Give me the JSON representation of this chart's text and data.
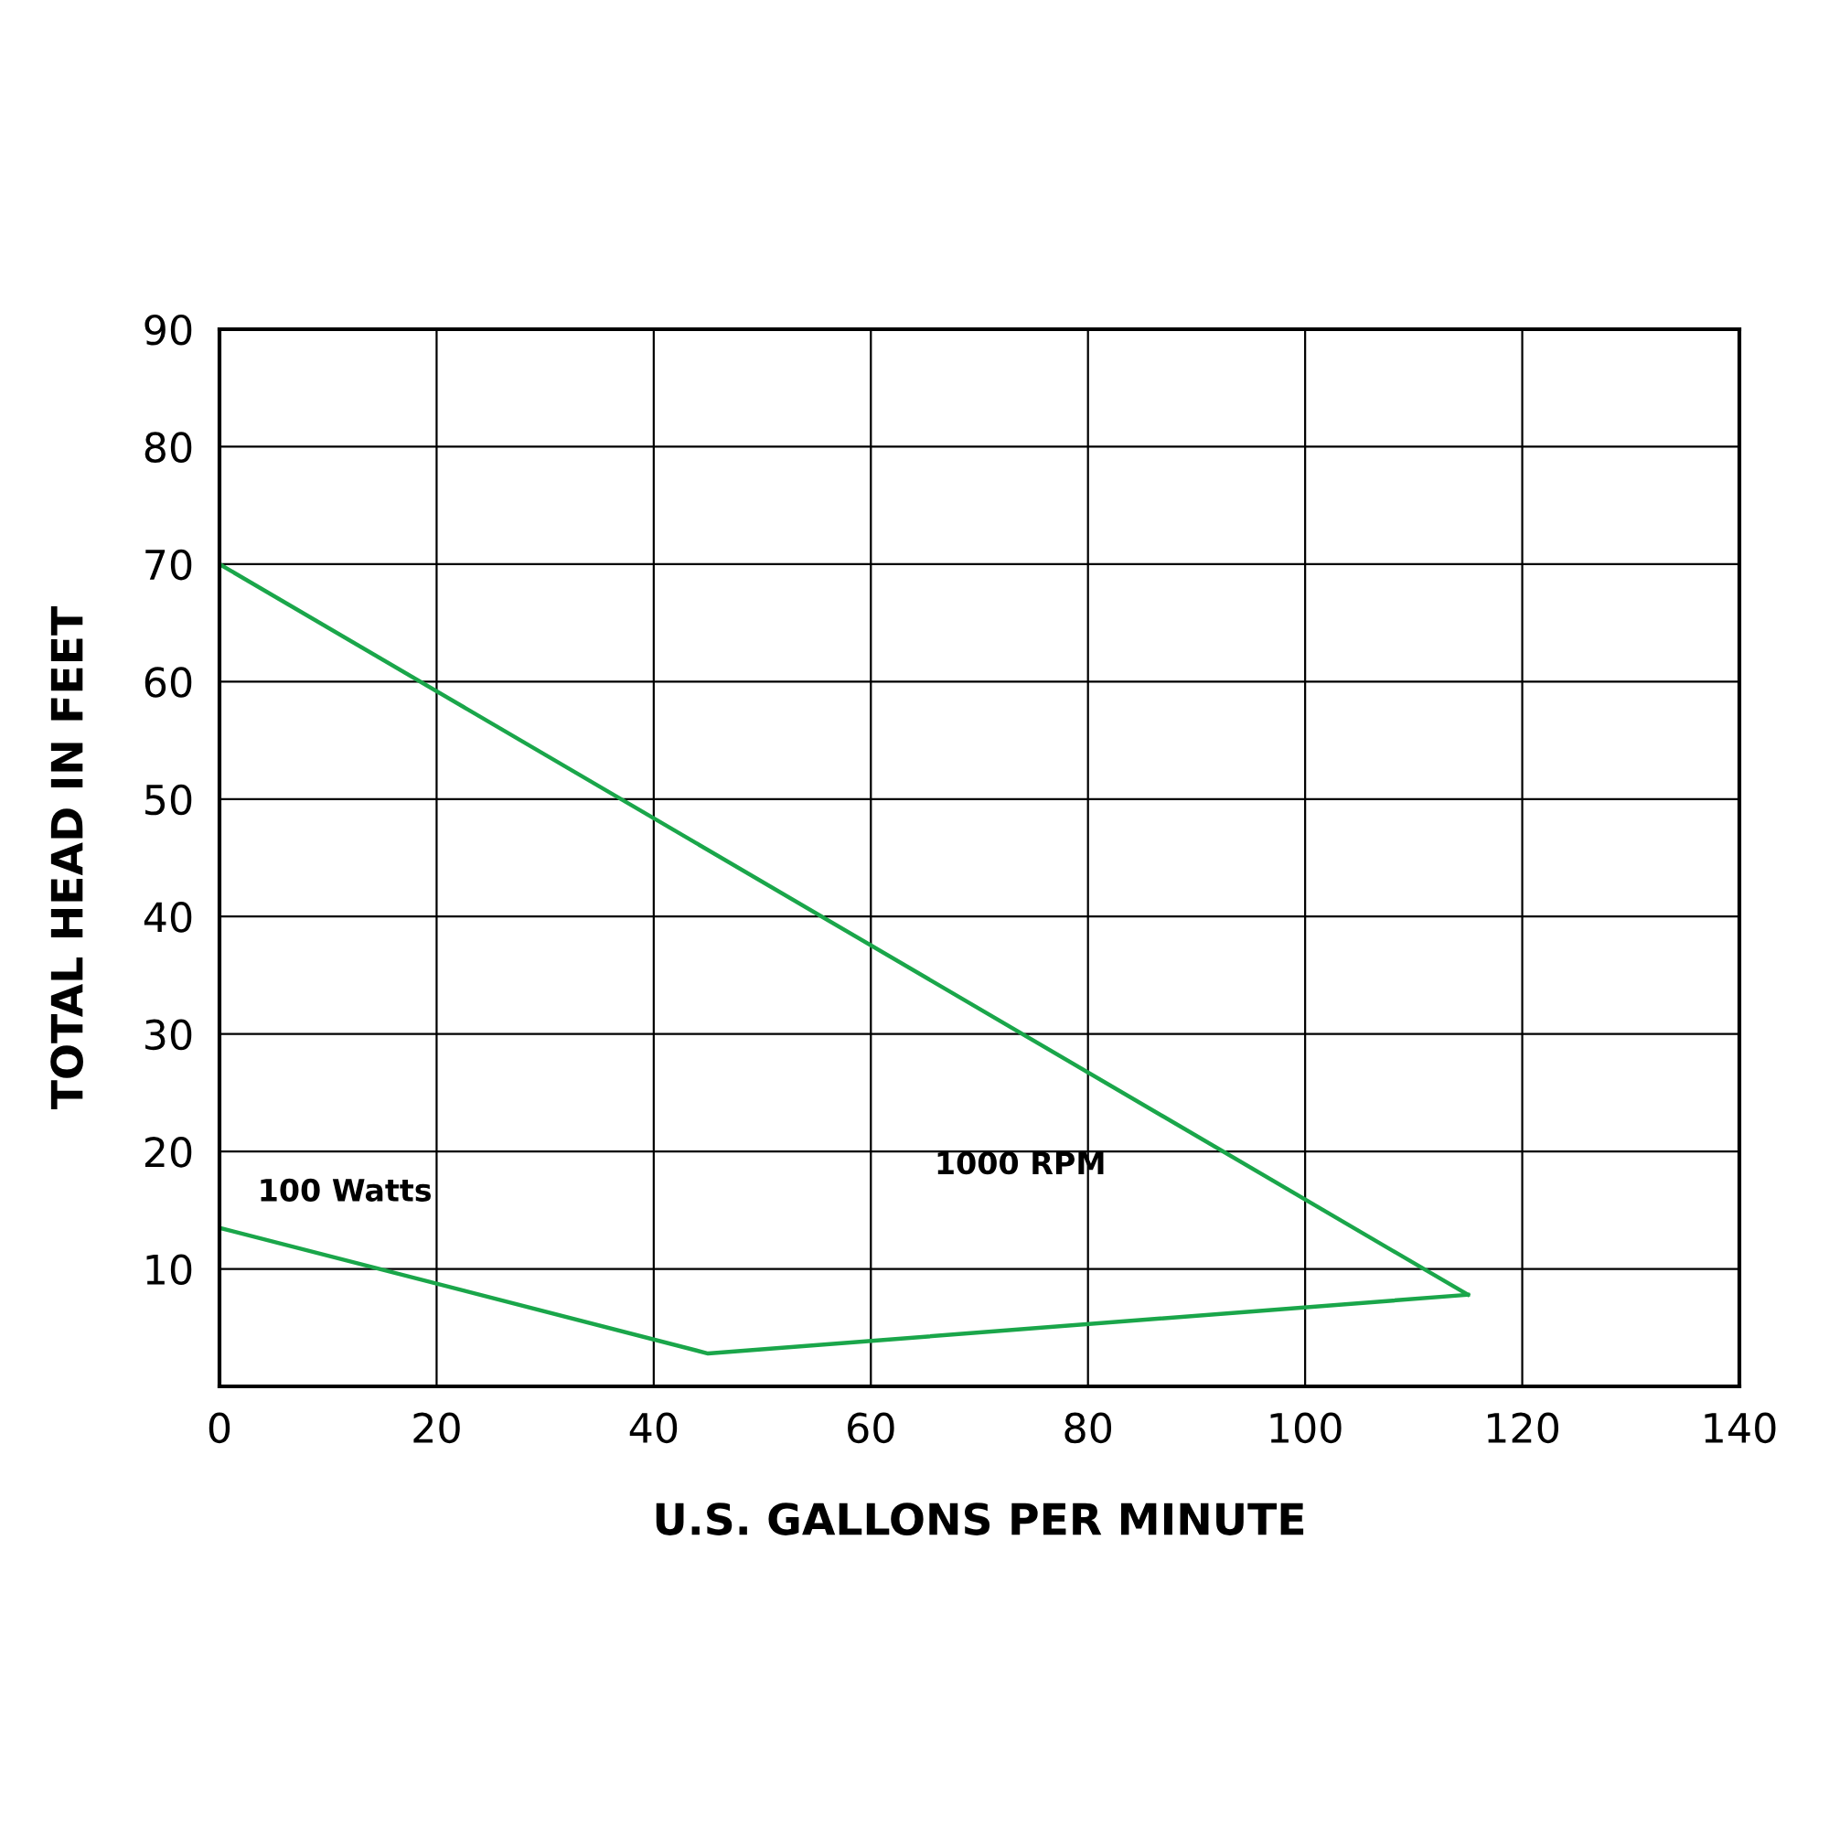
{
  "chart_data": {
    "type": "line",
    "xlabel": "U.S. GALLONS PER MINUTE",
    "ylabel": "TOTAL HEAD IN FEET",
    "series": [
      {
        "name": "1000 RPM",
        "color": "#1aa64a",
        "x": [
          0,
          115
        ],
        "values": [
          70,
          7.8
        ]
      },
      {
        "name": "100 Watts",
        "color": "#1aa64a",
        "x": [
          0,
          45,
          115
        ],
        "values": [
          13.5,
          2.8,
          7.8
        ]
      }
    ],
    "xlim": [
      0,
      140
    ],
    "ylim": [
      0,
      90
    ],
    "xticks": [
      0,
      20,
      40,
      60,
      80,
      100,
      120,
      140
    ],
    "yticks": [
      {
        "value": 0,
        "label": null
      },
      10,
      20,
      30,
      40,
      50,
      60,
      70,
      80,
      90
    ],
    "grid": true,
    "legend": false,
    "marker": "none",
    "line_style": "solid"
  }
}
